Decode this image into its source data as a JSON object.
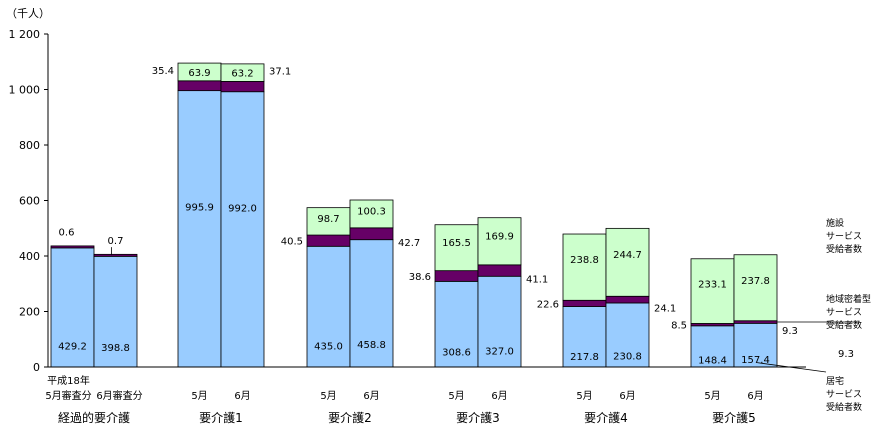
{
  "chart_data": {
    "type": "stacked-bar",
    "unit_label": "（千人）",
    "ylim": [
      0,
      1200
    ],
    "y_ticks": [
      "0",
      "200",
      "400",
      "600",
      "800",
      "1 000",
      "1 200"
    ],
    "y_tick_values": [
      0,
      200,
      400,
      600,
      800,
      1000,
      1200
    ],
    "groups": [
      {
        "name": "経過的要介護",
        "bars": [
          {
            "label": "平成18年\n5月審査分",
            "home": 429.2,
            "community": 0.6,
            "facility": 0
          },
          {
            "label": "6月審査分",
            "home": 398.8,
            "community": 0.7,
            "facility": 0
          }
        ]
      },
      {
        "name": "要介護1",
        "bars": [
          {
            "label": "5月",
            "home": 995.9,
            "community": 35.4,
            "facility": 63.9
          },
          {
            "label": "6月",
            "home": 992.0,
            "community": 37.1,
            "facility": 63.2
          }
        ]
      },
      {
        "name": "要介護2",
        "bars": [
          {
            "label": "5月",
            "home": 435.0,
            "community": 40.5,
            "facility": 98.7
          },
          {
            "label": "6月",
            "home": 458.8,
            "community": 42.7,
            "facility": 100.3
          }
        ]
      },
      {
        "name": "要介護3",
        "bars": [
          {
            "label": "5月",
            "home": 308.6,
            "community": 38.6,
            "facility": 165.5
          },
          {
            "label": "6月",
            "home": 327.0,
            "community": 41.1,
            "facility": 169.9
          }
        ]
      },
      {
        "name": "要介護4",
        "bars": [
          {
            "label": "5月",
            "home": 217.8,
            "community": 22.6,
            "facility": 238.8
          },
          {
            "label": "6月",
            "home": 230.8,
            "community": 24.1,
            "facility": 244.7
          }
        ]
      },
      {
        "name": "要介護5",
        "bars": [
          {
            "label": "5月",
            "home": 148.4,
            "community": 8.5,
            "facility": 233.1
          },
          {
            "label": "6月",
            "home": 157.4,
            "community": 9.3,
            "facility": 237.8
          }
        ]
      }
    ],
    "series": [
      {
        "key": "home",
        "name": "居宅\nサービス\n受給者数",
        "color": "#99CCFF"
      },
      {
        "key": "community",
        "name": "地域密着型\nサービス\n受給者数",
        "color": "#660066"
      },
      {
        "key": "facility",
        "name": "施設\nサービス\n受給者数",
        "color": "#CCFFCC"
      }
    ]
  }
}
